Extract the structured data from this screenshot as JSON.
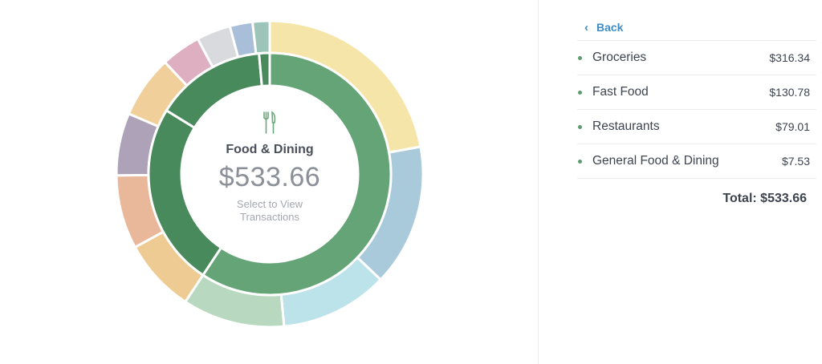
{
  "center": {
    "icon": "fork-knife-icon",
    "title": "Food & Dining",
    "amount": "$533.66",
    "hint_line1": "Select to View",
    "hint_line2": "Transactions"
  },
  "panel": {
    "back_label": "Back",
    "rows": [
      {
        "label": "Groceries",
        "value": "$316.34"
      },
      {
        "label": "Fast Food",
        "value": "$130.78"
      },
      {
        "label": "Restaurants",
        "value": "$79.01"
      },
      {
        "label": "General Food & Dining",
        "value": "$7.53"
      }
    ],
    "total_label": "Total: $533.66"
  },
  "colors": {
    "accent_blue": "#3d8dc4",
    "inner_selected": "#65a476",
    "inner_other": "#498a5c",
    "dot": "#5d9b6f"
  },
  "chart_data": {
    "type": "pie",
    "outer_ring": {
      "slices": [
        {
          "value": 18.5,
          "color": "#f6e5a8"
        },
        {
          "value": 12.5,
          "color": "#a9cadb"
        },
        {
          "value": 9.5,
          "color": "#bde3ea"
        },
        {
          "value": 9.0,
          "color": "#b8d9c0"
        },
        {
          "value": 6.5,
          "color": "#eecb92"
        },
        {
          "value": 6.5,
          "color": "#e9b89b"
        },
        {
          "value": 5.5,
          "color": "#ada2b8"
        },
        {
          "value": 5.5,
          "color": "#f0cf9a"
        },
        {
          "value": 3.5,
          "color": "#ddafc0"
        },
        {
          "value": 3.0,
          "color": "#d9dadd"
        },
        {
          "value": 2.0,
          "color": "#a8bed9"
        },
        {
          "value": 1.5,
          "color": "#9cc4b8"
        }
      ]
    },
    "inner_ring": {
      "slices": [
        {
          "label": "Groceries",
          "value": 316.34,
          "color": "#65a476"
        },
        {
          "label": "Fast Food",
          "value": 130.78,
          "color": "#498a5c"
        },
        {
          "label": "Restaurants",
          "value": 79.01,
          "color": "#498a5c"
        },
        {
          "label": "General Food & Dining",
          "value": 7.53,
          "color": "#498a5c"
        }
      ]
    }
  }
}
